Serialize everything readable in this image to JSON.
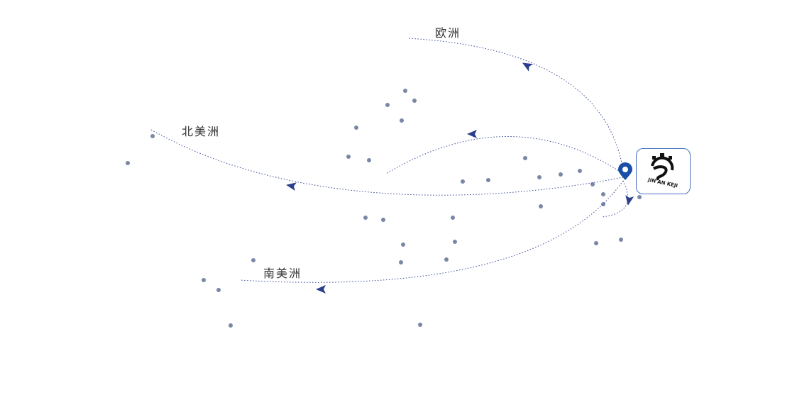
{
  "regions": [
    {
      "label": "欧洲"
    },
    {
      "label": "北美洲"
    },
    {
      "label": "南美洲"
    }
  ],
  "logo": {
    "text": "JIN AN KEJI"
  },
  "colors": {
    "route": "#3a4a9a",
    "arrow": "#2b3f8c",
    "dot": "#7a86a6",
    "pin": "#1a4fa8",
    "logo_border": "#4a72c4"
  },
  "icons": {
    "origin": "map-pin-icon"
  }
}
